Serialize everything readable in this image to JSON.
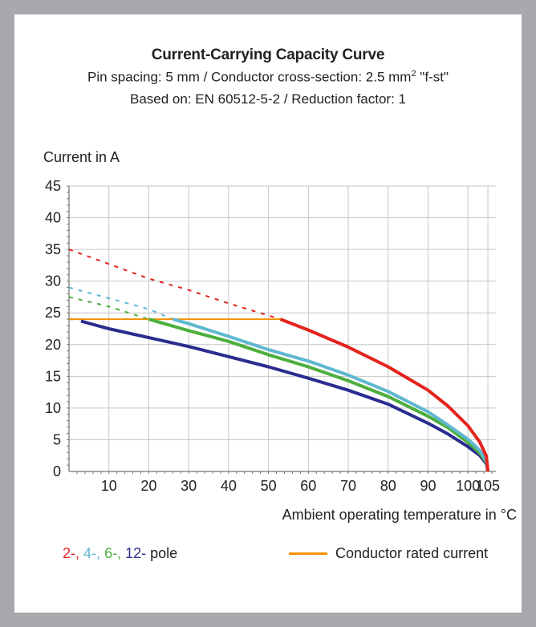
{
  "chart_data": {
    "type": "line",
    "title": "Current-Carrying Capacity Curve",
    "subtitle_1": "Pin spacing: 5 mm / Conductor cross-section: 2.5 mm",
    "subtitle_1_sup": "2",
    "subtitle_1_tail": " \"f-st\"",
    "subtitle_2": "Based on: EN 60512-5-2 / Reduction factor: 1",
    "ylabel": "Current in A",
    "xlabel": "Ambient operating temperature in °C",
    "xlim": [
      0,
      107
    ],
    "ylim": [
      0,
      45
    ],
    "xticks": [
      0,
      10,
      20,
      30,
      40,
      50,
      60,
      70,
      80,
      90,
      100,
      105
    ],
    "xtick_labels": [
      "",
      "10",
      "20",
      "30",
      "40",
      "50",
      "60",
      "70",
      "80",
      "90",
      "100",
      "105"
    ],
    "yticks": [
      0,
      5,
      10,
      15,
      20,
      25,
      30,
      35,
      40,
      45
    ],
    "ytick_labels": [
      "0",
      "5",
      "10",
      "15",
      "20",
      "25",
      "30",
      "35",
      "40",
      "45"
    ],
    "grid": true,
    "rated_current": {
      "x": [
        0,
        53
      ],
      "y": [
        24,
        24
      ],
      "color": "#f39200"
    },
    "series": [
      {
        "pole": "2-",
        "color": "#e3231c",
        "dashed": {
          "x": [
            0,
            10,
            20,
            30,
            40,
            53
          ],
          "y": [
            35,
            32.7,
            30.4,
            28.6,
            26.5,
            24
          ]
        },
        "solid": {
          "x": [
            53,
            60,
            70,
            80,
            90,
            95,
            100,
            103,
            104.6,
            105
          ],
          "y": [
            24,
            22.3,
            19.6,
            16.5,
            12.8,
            10.3,
            7.2,
            4.6,
            2.4,
            0
          ]
        }
      },
      {
        "pole": "4-",
        "color": "#5fb8d0",
        "dashed": {
          "x": [
            0,
            10,
            20,
            26
          ],
          "y": [
            29,
            27.3,
            25.6,
            24
          ]
        },
        "solid": {
          "x": [
            26,
            30,
            40,
            50,
            60,
            70,
            80,
            90,
            95,
            100,
            103,
            104.6,
            105
          ],
          "y": [
            24,
            23.3,
            21.3,
            19.2,
            17.4,
            15.2,
            12.6,
            9.4,
            7.3,
            5.1,
            3.3,
            1.6,
            0
          ]
        }
      },
      {
        "pole": "6-",
        "color": "#4caf3d",
        "dashed": {
          "x": [
            0,
            10,
            20
          ],
          "y": [
            27.5,
            26,
            24
          ]
        },
        "solid": {
          "x": [
            20,
            30,
            40,
            50,
            60,
            70,
            80,
            90,
            95,
            100,
            103,
            104.6,
            105
          ],
          "y": [
            24,
            22.2,
            20.5,
            18.4,
            16.5,
            14.3,
            11.8,
            8.7,
            6.9,
            4.6,
            2.9,
            1.4,
            0
          ]
        }
      },
      {
        "pole": "12-",
        "color": "#2a2d8f",
        "dashed": {
          "x": [
            0,
            3
          ],
          "y": [
            24,
            24
          ]
        },
        "solid": {
          "x": [
            3,
            10,
            20,
            30,
            40,
            50,
            60,
            70,
            80,
            90,
            95,
            100,
            103,
            104.6,
            105
          ],
          "y": [
            23.7,
            22.5,
            21.1,
            19.7,
            18.1,
            16.5,
            14.7,
            12.8,
            10.6,
            7.6,
            5.9,
            3.9,
            2.5,
            1.2,
            0
          ]
        }
      }
    ]
  },
  "legend": {
    "pole_2": "2-,",
    "pole_4": "4-,",
    "pole_6": "6-,",
    "pole_12": "12-",
    "pole_word": "pole",
    "rated_label": "Conductor rated current"
  }
}
